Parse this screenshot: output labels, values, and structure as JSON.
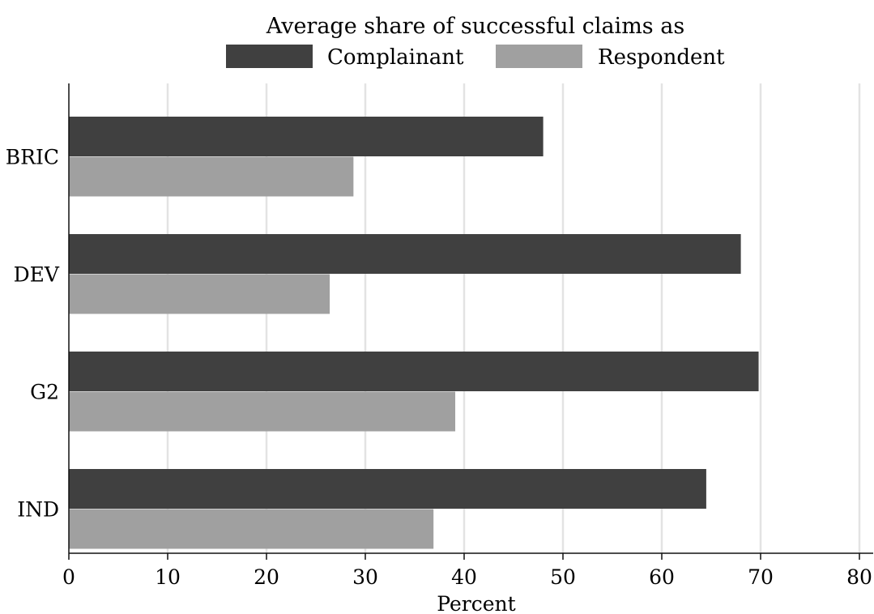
{
  "chart_data": {
    "type": "bar",
    "orientation": "horizontal",
    "title": "Average share of successful claims as",
    "xlabel": "Percent",
    "ylabel": "",
    "categories": [
      "BRIC",
      "DEV",
      "G2",
      "IND"
    ],
    "series": [
      {
        "name": "Complainant",
        "values": [
          48.0,
          68.0,
          69.8,
          64.5
        ],
        "color": "#404040"
      },
      {
        "name": "Respondent",
        "values": [
          28.8,
          26.4,
          39.1,
          36.9
        ],
        "color": "#a0a0a0"
      }
    ],
    "xlim": [
      0,
      80
    ],
    "xticks": [
      0,
      10,
      20,
      30,
      40,
      50,
      60,
      70,
      80
    ],
    "grid": true,
    "legend_position": "top"
  }
}
